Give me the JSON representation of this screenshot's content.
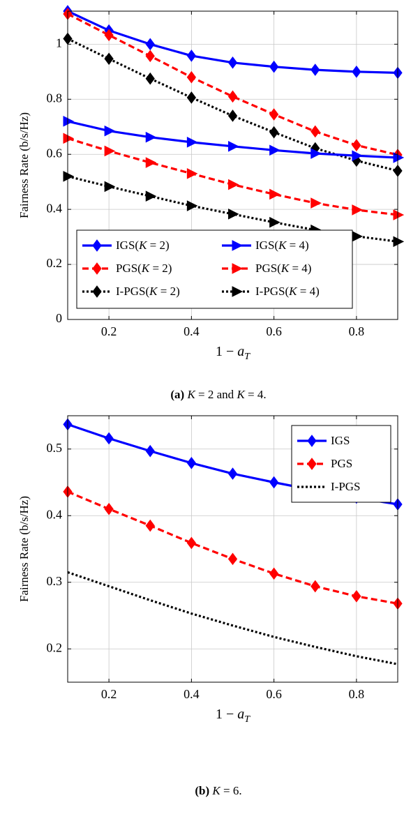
{
  "chart_data": [
    {
      "type": "line",
      "caption_tag": "(a)",
      "caption_text": "K = 2 and K = 4.",
      "ylabel": "Fairness Rate (b/s/Hz)",
      "xlabel": "1 − a_T",
      "xlim": [
        0.1,
        0.9
      ],
      "ylim": [
        0,
        1.12
      ],
      "xticks": [
        0.2,
        0.4,
        0.6,
        0.8
      ],
      "xtick_labels": [
        "0.2",
        "0.4",
        "0.6",
        "0.8"
      ],
      "yticks": [
        0,
        0.2,
        0.4,
        0.6,
        0.8,
        1
      ],
      "ytick_labels": [
        "0",
        "0.2",
        "0.4",
        "0.6",
        "0.8",
        "1"
      ],
      "grid": true,
      "legend_position": "bottom-center",
      "x": [
        0.1,
        0.2,
        0.3,
        0.4,
        0.5,
        0.6,
        0.7,
        0.8,
        0.9
      ],
      "series": [
        {
          "name": "IGS(K = 2)",
          "color": "#0000ff",
          "dash": "solid",
          "marker": "diamond",
          "values": [
            1.12,
            1.05,
            1.0,
            0.958,
            0.933,
            0.918,
            0.907,
            0.9,
            0.896
          ]
        },
        {
          "name": "PGS(K = 2)",
          "color": "#ff0000",
          "dash": "dashed",
          "marker": "diamond",
          "values": [
            1.11,
            1.033,
            0.957,
            0.88,
            0.81,
            0.745,
            0.683,
            0.633,
            0.598
          ]
        },
        {
          "name": "I-PGS(K = 2)",
          "color": "#000000",
          "dash": "dotted",
          "marker": "diamond",
          "values": [
            1.02,
            0.947,
            0.875,
            0.806,
            0.74,
            0.68,
            0.622,
            0.577,
            0.54
          ]
        },
        {
          "name": "IGS(K = 4)",
          "color": "#0000ff",
          "dash": "solid",
          "marker": "triangle-right",
          "values": [
            0.72,
            0.685,
            0.662,
            0.644,
            0.629,
            0.615,
            0.603,
            0.595,
            0.588
          ]
        },
        {
          "name": "PGS(K = 4)",
          "color": "#ff0000",
          "dash": "dashed",
          "marker": "triangle-right",
          "values": [
            0.658,
            0.612,
            0.57,
            0.53,
            0.49,
            0.455,
            0.423,
            0.398,
            0.38
          ]
        },
        {
          "name": "I-PGS(K = 4)",
          "color": "#000000",
          "dash": "dotted",
          "marker": "triangle-right",
          "values": [
            0.52,
            0.483,
            0.448,
            0.413,
            0.383,
            0.353,
            0.325,
            0.302,
            0.283
          ]
        }
      ]
    },
    {
      "type": "line",
      "caption_tag": "(b)",
      "caption_text": "K = 6.",
      "ylabel": "Fairness Rate (b/s/Hz)",
      "xlabel": "1 − a_T",
      "xlim": [
        0.1,
        0.9
      ],
      "ylim": [
        0.15,
        0.55
      ],
      "xticks": [
        0.2,
        0.4,
        0.6,
        0.8
      ],
      "xtick_labels": [
        "0.2",
        "0.4",
        "0.6",
        "0.8"
      ],
      "yticks": [
        0.2,
        0.3,
        0.4,
        0.5
      ],
      "ytick_labels": [
        "0.2",
        "0.3",
        "0.4",
        "0.5"
      ],
      "grid": true,
      "legend_position": "top-right",
      "x": [
        0.1,
        0.2,
        0.3,
        0.4,
        0.5,
        0.6,
        0.7,
        0.8,
        0.9
      ],
      "series": [
        {
          "name": "IGS",
          "color": "#0000ff",
          "dash": "solid",
          "marker": "diamond",
          "values": [
            0.537,
            0.516,
            0.497,
            0.479,
            0.463,
            0.45,
            0.438,
            0.427,
            0.417
          ]
        },
        {
          "name": "PGS",
          "color": "#ff0000",
          "dash": "dashed",
          "marker": "diamond",
          "values": [
            0.436,
            0.41,
            0.385,
            0.359,
            0.335,
            0.313,
            0.294,
            0.279,
            0.268
          ]
        },
        {
          "name": "I-PGS",
          "color": "#000000",
          "dash": "dotted",
          "marker": "none",
          "values": [
            0.315,
            0.294,
            0.273,
            0.253,
            0.235,
            0.218,
            0.203,
            0.189,
            0.177
          ]
        }
      ]
    }
  ]
}
